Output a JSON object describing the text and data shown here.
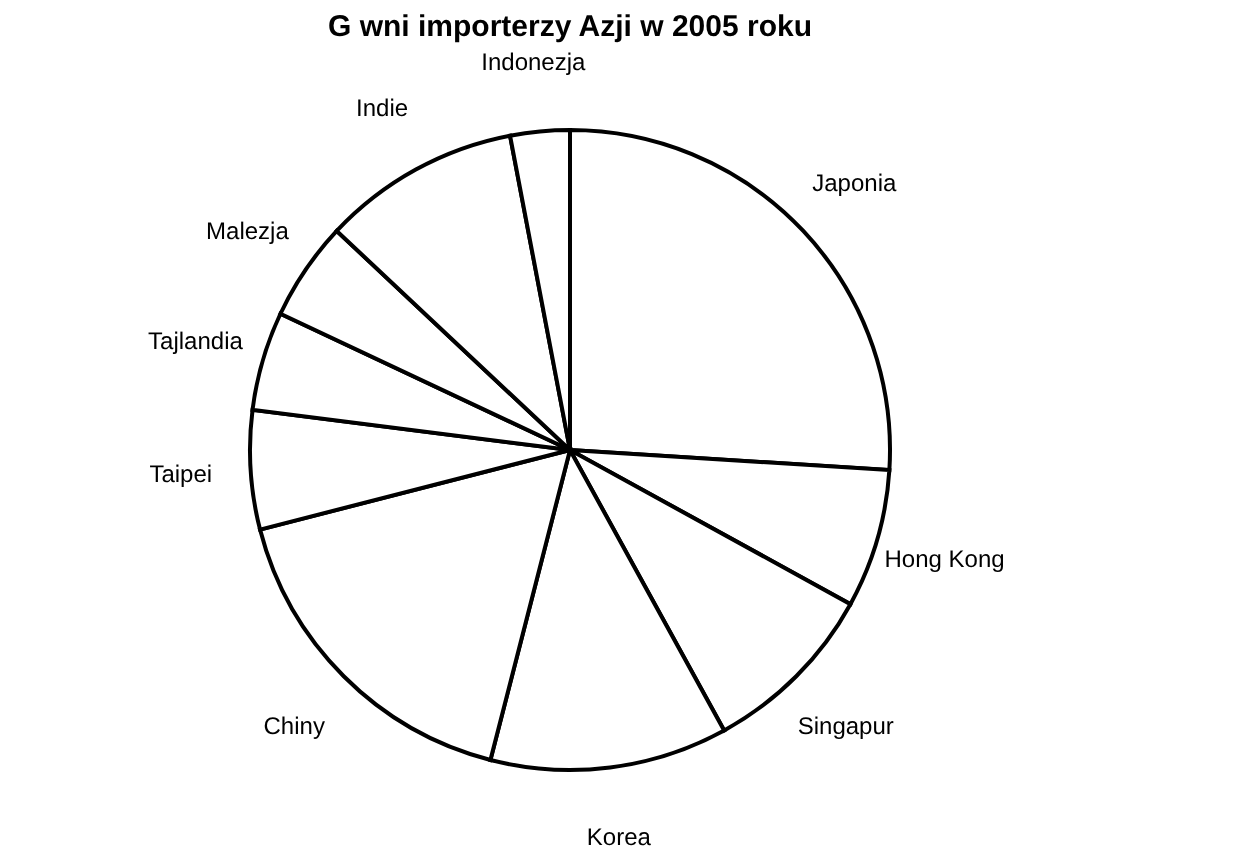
{
  "chart_data": {
    "type": "pie",
    "title": "G   wni importerzy Azji w 2005 roku",
    "categories": [
      "Japonia",
      "Hong Kong",
      "Singapur",
      "Korea",
      "Chiny",
      "Taipei",
      "Tajlandia",
      "Malezja",
      "Indie",
      "Indonezja"
    ],
    "values": [
      26,
      7,
      9,
      12,
      17,
      6,
      5,
      5,
      10,
      3
    ],
    "colors": [
      "#ffffff",
      "#ffffff",
      "#ffffff",
      "#ffffff",
      "#ffffff",
      "#ffffff",
      "#ffffff",
      "#ffffff",
      "#ffffff",
      "#ffffff"
    ],
    "legend": false
  }
}
